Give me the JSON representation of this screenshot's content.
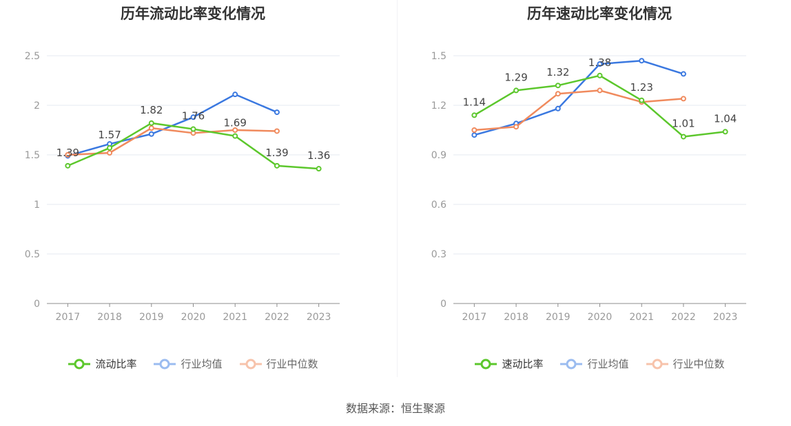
{
  "source_text": "数据来源：恒生聚源",
  "chart_data": [
    {
      "type": "line",
      "title": "历年流动比率变化情况",
      "x": [
        "2017",
        "2018",
        "2019",
        "2020",
        "2021",
        "2022",
        "2023"
      ],
      "ylim": [
        0,
        2.5
      ],
      "yticks": [
        "0",
        "0.5",
        "1",
        "1.5",
        "2",
        "2.5"
      ],
      "ytick_values": [
        0,
        0.5,
        1,
        1.5,
        2,
        2.5
      ],
      "grid": true,
      "legend_position": "bottom",
      "series": [
        {
          "name": "流动比率",
          "color": "#5cc72c",
          "values": [
            1.39,
            1.57,
            1.82,
            1.76,
            1.69,
            1.39,
            1.36
          ],
          "labels": [
            "1.39",
            "1.57",
            "1.82",
            "1.76",
            "1.69",
            "1.39",
            "1.36"
          ]
        },
        {
          "name": "行业均值",
          "color": "#3a78e0",
          "values": [
            1.49,
            1.61,
            1.71,
            1.88,
            2.11,
            1.93,
            null
          ]
        },
        {
          "name": "行业中位数",
          "color": "#f08a5d",
          "values": [
            1.5,
            1.52,
            1.77,
            1.72,
            1.75,
            1.74,
            null
          ]
        }
      ]
    },
    {
      "type": "line",
      "title": "历年速动比率变化情况",
      "x": [
        "2017",
        "2018",
        "2019",
        "2020",
        "2021",
        "2022",
        "2023"
      ],
      "ylim": [
        0,
        1.5
      ],
      "yticks": [
        "0",
        "0.3",
        "0.6",
        "0.9",
        "1.2",
        "1.5"
      ],
      "ytick_values": [
        0,
        0.3,
        0.6,
        0.9,
        1.2,
        1.5
      ],
      "grid": true,
      "legend_position": "bottom",
      "series": [
        {
          "name": "速动比率",
          "color": "#5cc72c",
          "values": [
            1.14,
            1.29,
            1.32,
            1.38,
            1.23,
            1.01,
            1.04
          ],
          "labels": [
            "1.14",
            "1.29",
            "1.32",
            "1.38",
            "1.23",
            "1.01",
            "1.04"
          ]
        },
        {
          "name": "行业均值",
          "color": "#3a78e0",
          "values": [
            1.02,
            1.09,
            1.18,
            1.45,
            1.47,
            1.39,
            null
          ]
        },
        {
          "name": "行业中位数",
          "color": "#f08a5d",
          "values": [
            1.05,
            1.07,
            1.27,
            1.29,
            1.22,
            1.24,
            null
          ]
        }
      ]
    }
  ]
}
